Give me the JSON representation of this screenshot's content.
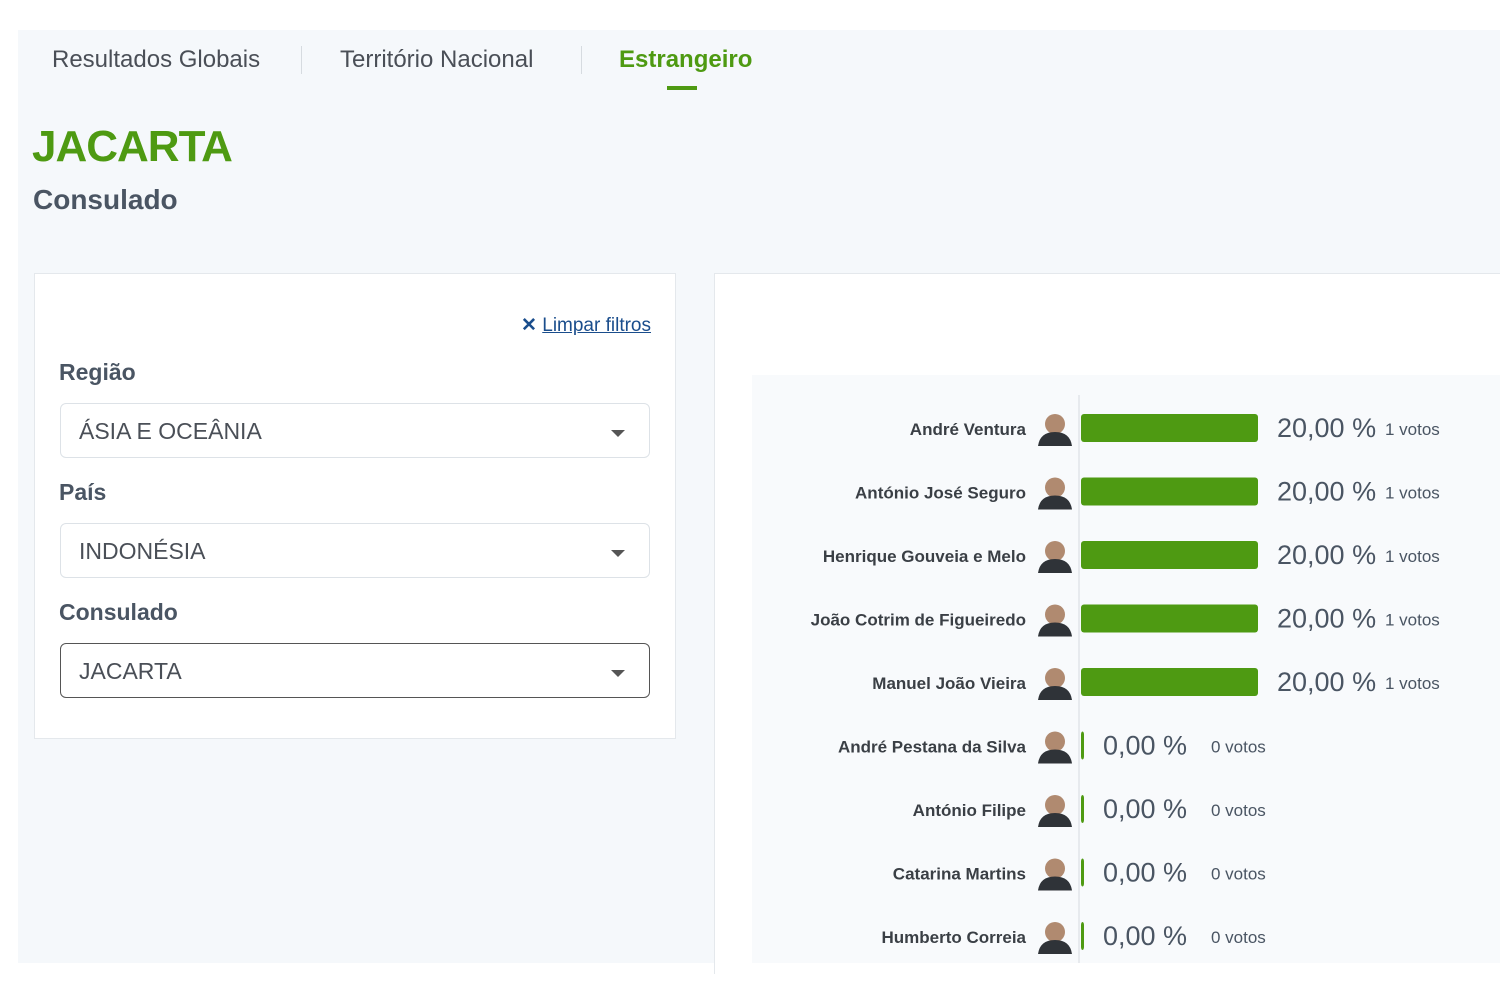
{
  "tabs": [
    "Resultados Globais",
    "Território Nacional",
    "Estrangeiro"
  ],
  "header": {
    "title": "JACARTA",
    "subtitle": "Consulado"
  },
  "filters": {
    "clear": "Limpar filtros",
    "fields": [
      {
        "label": "Região",
        "value": "ÁSIA E OCEÂNIA"
      },
      {
        "label": "País",
        "value": "INDONÉSIA"
      },
      {
        "label": "Consulado",
        "value": "JACARTA"
      }
    ]
  },
  "chart_data": {
    "type": "bar",
    "orientation": "horizontal",
    "color": "#4e9a12",
    "categories": [
      "André Ventura",
      "António José Seguro",
      "Henrique Gouveia e Melo",
      "João Cotrim de Figueiredo",
      "Manuel João Vieira",
      "André Pestana da Silva",
      "António Filipe",
      "Catarina Martins",
      "Humberto Correia"
    ],
    "values": [
      20,
      20,
      20,
      20,
      20,
      0,
      0,
      0,
      0
    ],
    "value_labels": [
      "20,00 %",
      "20,00 %",
      "20,00 %",
      "20,00 %",
      "20,00 %",
      "0,00 %",
      "0,00 %",
      "0,00 %",
      "0,00 %"
    ],
    "vote_labels": [
      "1 votos",
      "1 votos",
      "1 votos",
      "1 votos",
      "1 votos",
      "0 votos",
      "0 votos",
      "0 votos",
      "0 votos"
    ],
    "xlim": [
      0,
      20
    ]
  }
}
